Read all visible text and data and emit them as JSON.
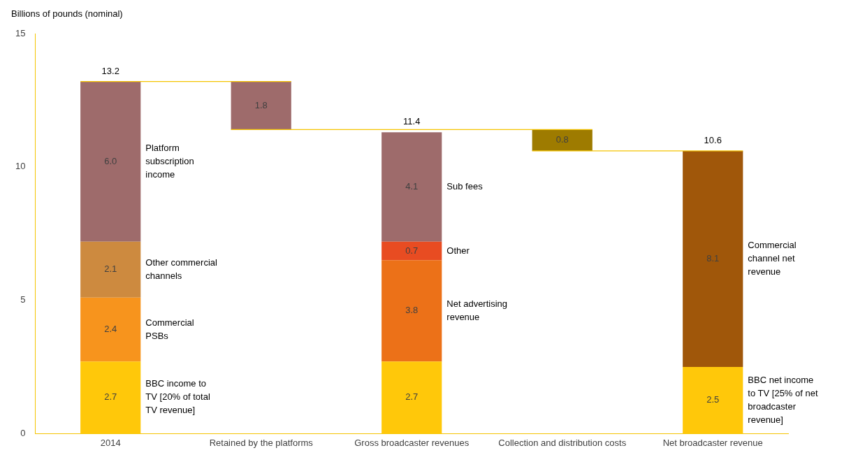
{
  "chart_data": {
    "type": "bar",
    "ylabel": "Billions of pounds (nominal)",
    "categories": [
      "2014",
      "Retained by the platforms",
      "Gross broadcaster revenues",
      "Collection and distribution costs",
      "Net broadcaster revenue"
    ],
    "stacked": true,
    "series": [
      {
        "name": "BBC income to TV [20% of total TV revenue]",
        "color": "#ffc80a",
        "values": [
          2.7,
          null,
          null,
          null,
          null
        ],
        "value_labels": [
          "2.7",
          null,
          null,
          null,
          null
        ]
      },
      {
        "name": "Commercial PSBs",
        "color": "#f7941d",
        "values": [
          2.4,
          null,
          null,
          null,
          null
        ],
        "value_labels": [
          "2.4",
          null,
          null,
          null,
          null
        ]
      },
      {
        "name": "Other commercial channels",
        "color": "#cd8a3f",
        "values": [
          2.1,
          null,
          null,
          null,
          null
        ],
        "value_labels": [
          "2.1",
          null,
          null,
          null,
          null
        ]
      },
      {
        "name": "Platform subscription income",
        "color": "#9e6b6b",
        "values": [
          6.0,
          null,
          null,
          null,
          null
        ],
        "value_labels": [
          "6.0",
          null,
          null,
          null,
          null
        ]
      },
      {
        "color": "#9e6b6b",
        "values": [
          null,
          1.8,
          null,
          null,
          null
        ],
        "base": [
          null,
          11.4,
          null,
          null,
          null
        ],
        "value_labels": [
          null,
          "1.8",
          null,
          null,
          null
        ]
      },
      {
        "color": "#ffc80a",
        "values": [
          null,
          null,
          2.7,
          null,
          null
        ],
        "value_labels": [
          null,
          null,
          "2.7",
          null,
          null
        ]
      },
      {
        "name": "Net advertising revenue",
        "color": "#ec7118",
        "values": [
          null,
          null,
          3.8,
          null,
          null
        ],
        "value_labels": [
          null,
          null,
          "3.8",
          null,
          null
        ]
      },
      {
        "name": "Other",
        "color": "#e84c22",
        "values": [
          null,
          null,
          0.7,
          null,
          null
        ],
        "value_labels": [
          null,
          null,
          "0.7",
          null,
          null
        ]
      },
      {
        "name": "Sub fees",
        "color": "#9e6b6b",
        "values": [
          null,
          null,
          4.1,
          null,
          null
        ],
        "value_labels": [
          null,
          null,
          "4.1",
          null,
          null
        ]
      },
      {
        "color": "#9e7b00",
        "values": [
          null,
          null,
          null,
          0.8,
          null
        ],
        "base": [
          null,
          null,
          null,
          10.6,
          null
        ],
        "value_labels": [
          null,
          null,
          null,
          "0.8",
          null
        ]
      },
      {
        "name": "BBC net income to TV [25% of net broadcaster revenue]",
        "color": "#ffc80a",
        "values": [
          null,
          null,
          null,
          null,
          2.5
        ],
        "value_labels": [
          null,
          null,
          null,
          null,
          "2.5"
        ]
      },
      {
        "name": "Commercial channel net revenue",
        "color": "#a0570a",
        "values": [
          null,
          null,
          null,
          null,
          8.1
        ],
        "value_labels": [
          null,
          null,
          null,
          null,
          "8.1"
        ]
      }
    ],
    "totals": [
      "13.2",
      null,
      "11.4",
      null,
      "10.6"
    ],
    "ref_lines": [
      {
        "axis": "y",
        "value": 13.2,
        "color": "#f5c400"
      },
      {
        "axis": "y",
        "value": 11.4,
        "color": "#f5c400"
      },
      {
        "axis": "y",
        "value": 10.6,
        "color": "#f5c400"
      }
    ],
    "ylim": [
      0,
      15
    ],
    "yticks": [
      0,
      5,
      10,
      15
    ],
    "grid": false,
    "legend": false
  }
}
